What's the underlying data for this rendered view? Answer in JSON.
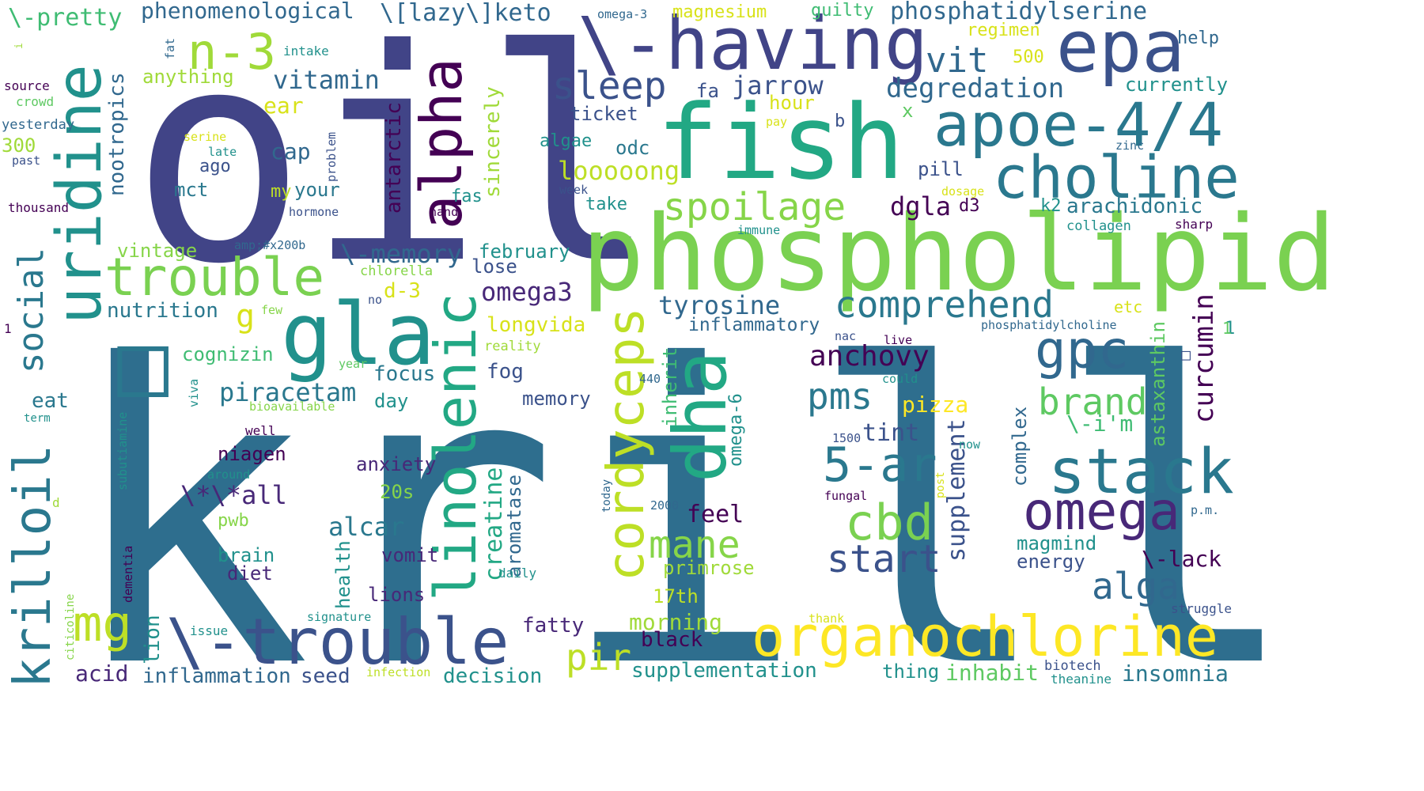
{
  "words": [
    {
      "text": "krill",
      "color": "#2e6e8e"
    },
    {
      "text": "oil",
      "color": "#414487"
    },
    {
      "text": "fish",
      "color": "#22a884"
    },
    {
      "text": "phospholipid",
      "color": "#7ad151"
    },
    {
      "text": "\\-having",
      "color": "#414487"
    },
    {
      "text": "epa",
      "color": "#3b528b"
    },
    {
      "text": "apoe-4/4",
      "color": "#2a788e"
    },
    {
      "text": "choline",
      "color": "#2a788e"
    },
    {
      "text": "gla",
      "color": "#21918c"
    },
    {
      "text": "alpha",
      "color": "#440154"
    },
    {
      "text": "uridine",
      "color": "#21918c"
    },
    {
      "text": "trouble",
      "color": "#7ad151"
    },
    {
      "text": "n-3",
      "color": "#a0da39"
    },
    {
      "text": "dha",
      "color": "#22a884"
    },
    {
      "text": "linolenic",
      "color": "#22a884"
    },
    {
      "text": "cordyceps",
      "color": "#bddf26"
    },
    {
      "text": "organochlorine",
      "color": "#fde725"
    },
    {
      "text": "\\-trouble",
      "color": "#3b528b"
    },
    {
      "text": "krilloil",
      "color": "#2a788e"
    },
    {
      "text": "mg",
      "color": "#bddf26"
    },
    {
      "text": "stack",
      "color": "#2a788e"
    },
    {
      "text": "omega",
      "color": "#482878"
    },
    {
      "text": "gpc",
      "color": "#31688e"
    },
    {
      "text": "cbd",
      "color": "#7ad151"
    },
    {
      "text": "5-ar",
      "color": "#2a788e"
    },
    {
      "text": "spoilage",
      "color": "#86d549"
    },
    {
      "text": "comprehend",
      "color": "#2a788e"
    },
    {
      "text": "sleep",
      "color": "#3b528b"
    },
    {
      "text": "social",
      "color": "#2a788e"
    },
    {
      "text": "mane",
      "color": "#86d549"
    },
    {
      "text": "alga",
      "color": "#31688e"
    },
    {
      "text": "brand",
      "color": "#5ec962"
    },
    {
      "text": "start",
      "color": "#3b528b"
    },
    {
      "text": "pms",
      "color": "#2a788e"
    },
    {
      "text": "pir",
      "color": "#bddf26"
    },
    {
      "text": "vit",
      "color": "#31688e"
    },
    {
      "text": "curcumin",
      "color": "#440154"
    },
    {
      "text": "anchovy",
      "color": "#440154"
    },
    {
      "text": "piracetam",
      "color": "#2a788e"
    },
    {
      "text": "tyrosine",
      "color": "#31688e"
    },
    {
      "text": "omega3",
      "color": "#482878"
    },
    {
      "text": "degredation",
      "color": "#31688e"
    },
    {
      "text": "vitamin",
      "color": "#31688e"
    },
    {
      "text": "jarrow",
      "color": "#3b528b"
    },
    {
      "text": "dgla",
      "color": "#440154"
    },
    {
      "text": "\\-memory",
      "color": "#31688e"
    },
    {
      "text": "creatine",
      "color": "#22a884"
    },
    {
      "text": "supplement",
      "color": "#3b528b"
    },
    {
      "text": "arachidonic",
      "color": "#2a788e"
    },
    {
      "text": "phosphatidylserine",
      "color": "#31688e"
    },
    {
      "text": "phenomenological",
      "color": "#31688e"
    },
    {
      "text": "\\[lazy\\]keto",
      "color": "#31688e"
    },
    {
      "text": "\\-pretty",
      "color": "#3fbc73"
    },
    {
      "text": "looooong",
      "color": "#bddf26"
    },
    {
      "text": "nootropics",
      "color": "#31688e"
    },
    {
      "text": "antarctic",
      "color": "#440154"
    },
    {
      "text": "sincerely",
      "color": "#a0da39"
    },
    {
      "text": "astaxanthin",
      "color": "#5ec962"
    },
    {
      "text": "\\*\\*all",
      "color": "#482878"
    },
    {
      "text": "aromatase",
      "color": "#31688e"
    },
    {
      "text": "omega-6",
      "color": "#21918c"
    },
    {
      "text": "inherit",
      "color": "#3fbc73"
    },
    {
      "text": "health",
      "color": "#21918c"
    },
    {
      "text": "complex",
      "color": "#31688e"
    },
    {
      "text": "\\-lack",
      "color": "#440154"
    },
    {
      "text": "\\-i'm",
      "color": "#3fbc73"
    },
    {
      "text": "insomnia",
      "color": "#2a788e"
    },
    {
      "text": "inhabit",
      "color": "#5ec962"
    },
    {
      "text": "supplementation",
      "color": "#21918c"
    },
    {
      "text": "decision",
      "color": "#21918c"
    },
    {
      "text": "inflammation",
      "color": "#31688e"
    },
    {
      "text": "seed",
      "color": "#3b528b"
    },
    {
      "text": "acid",
      "color": "#482878"
    },
    {
      "text": "lion",
      "color": "#21918c"
    },
    {
      "text": "fatty",
      "color": "#482878"
    },
    {
      "text": "black",
      "color": "#440154"
    },
    {
      "text": "morning",
      "color": "#a0da39"
    },
    {
      "text": "17th",
      "color": "#bddf26"
    },
    {
      "text": "primrose",
      "color": "#a0da39"
    },
    {
      "text": "feel",
      "color": "#440154"
    },
    {
      "text": "tint",
      "color": "#3b528b"
    },
    {
      "text": "pizza",
      "color": "#fde725"
    },
    {
      "text": "magmind",
      "color": "#21918c"
    },
    {
      "text": "energy",
      "color": "#3b528b"
    },
    {
      "text": "thing",
      "color": "#21918c"
    },
    {
      "text": "biotech",
      "color": "#3b528b"
    },
    {
      "text": "theanine",
      "color": "#21918c"
    },
    {
      "text": "inflammatory",
      "color": "#31688e"
    },
    {
      "text": "fog",
      "color": "#3b528b"
    },
    {
      "text": "focus",
      "color": "#2a788e"
    },
    {
      "text": "memory",
      "color": "#3b528b"
    },
    {
      "text": "longvida",
      "color": "#d8e219"
    },
    {
      "text": "lose",
      "color": "#3b528b"
    },
    {
      "text": "february",
      "color": "#21918c"
    },
    {
      "text": "d-3",
      "color": "#d8e219"
    },
    {
      "text": "nutrition",
      "color": "#2a788e"
    },
    {
      "text": "cognizin",
      "color": "#3fbc73"
    },
    {
      "text": "vintage",
      "color": "#86d549"
    },
    {
      "text": "eat",
      "color": "#2a788e"
    },
    {
      "text": "g",
      "color": "#d8e219"
    },
    {
      "text": "niagen",
      "color": "#440154"
    },
    {
      "text": "anxiety",
      "color": "#482878"
    },
    {
      "text": "20s",
      "color": "#86d549"
    },
    {
      "text": "alcar",
      "color": "#2a788e"
    },
    {
      "text": "vomit",
      "color": "#482878"
    },
    {
      "text": "lions",
      "color": "#482878"
    },
    {
      "text": "pwb",
      "color": "#86d549"
    },
    {
      "text": "brain",
      "color": "#21918c"
    },
    {
      "text": "diet",
      "color": "#482878"
    },
    {
      "text": "day",
      "color": "#21918c"
    },
    {
      "text": "cap",
      "color": "#31688e"
    },
    {
      "text": "ago",
      "color": "#3b528b"
    },
    {
      "text": "mct",
      "color": "#2a788e"
    },
    {
      "text": "my",
      "color": "#bddf26"
    },
    {
      "text": "your",
      "color": "#2a788e"
    },
    {
      "text": "ear",
      "color": "#d8e219"
    },
    {
      "text": "anything",
      "color": "#a0da39"
    },
    {
      "text": "magnesium",
      "color": "#d8e219"
    },
    {
      "text": "guilty",
      "color": "#3fbc73"
    },
    {
      "text": "regimen",
      "color": "#d8e219"
    },
    {
      "text": "500",
      "color": "#d8e219"
    },
    {
      "text": "help",
      "color": "#31688e"
    },
    {
      "text": "currently",
      "color": "#21918c"
    },
    {
      "text": "fa",
      "color": "#3b528b"
    },
    {
      "text": "hour",
      "color": "#d8e219"
    },
    {
      "text": "ticket",
      "color": "#3b528b"
    },
    {
      "text": "x",
      "color": "#5ec962"
    },
    {
      "text": "b",
      "color": "#3b528b"
    },
    {
      "text": "algae",
      "color": "#21918c"
    },
    {
      "text": "odc",
      "color": "#2a788e"
    },
    {
      "text": "pill",
      "color": "#3b528b"
    },
    {
      "text": "take",
      "color": "#21918c"
    },
    {
      "text": "fas",
      "color": "#21918c"
    },
    {
      "text": "d3",
      "color": "#440154"
    },
    {
      "text": "k2",
      "color": "#21918c"
    },
    {
      "text": "collagen",
      "color": "#21918c"
    },
    {
      "text": "sharp",
      "color": "#440154"
    },
    {
      "text": "zinc",
      "color": "#31688e"
    },
    {
      "text": "dosage",
      "color": "#d8e219"
    },
    {
      "text": "week",
      "color": "#3b528b"
    },
    {
      "text": "immune",
      "color": "#21918c"
    },
    {
      "text": "pay",
      "color": "#d8e219"
    },
    {
      "text": "omega-3",
      "color": "#31688e"
    },
    {
      "text": "intake",
      "color": "#21918c"
    },
    {
      "text": "fat",
      "color": "#31688e"
    },
    {
      "text": "i",
      "color": "#a0da39"
    },
    {
      "text": "source",
      "color": "#440154"
    },
    {
      "text": "crowd",
      "color": "#5ec962"
    },
    {
      "text": "yesterday",
      "color": "#31688e"
    },
    {
      "text": "300",
      "color": "#a0da39"
    },
    {
      "text": "past",
      "color": "#3b528b"
    },
    {
      "text": "thousand",
      "color": "#440154"
    },
    {
      "text": "serine",
      "color": "#d8e219"
    },
    {
      "text": "late",
      "color": "#21918c"
    },
    {
      "text": "problem",
      "color": "#3b528b"
    },
    {
      "text": "hormone",
      "color": "#3b528b"
    },
    {
      "text": "hand",
      "color": "#440154"
    },
    {
      "text": "amp;#x200b",
      "color": "#31688e"
    },
    {
      "text": "chlorella",
      "color": "#86d549"
    },
    {
      "text": "no",
      "color": "#3b528b"
    },
    {
      "text": "few",
      "color": "#86d549"
    },
    {
      "text": "reality",
      "color": "#a0da39"
    },
    {
      "text": "year",
      "color": "#5ec962"
    },
    {
      "text": "etc",
      "color": "#d8e219"
    },
    {
      "text": "phosphatidylcholine",
      "color": "#31688e"
    },
    {
      "text": "1",
      "color": "#21918c"
    },
    {
      "text": "nac",
      "color": "#3b528b"
    },
    {
      "text": "live",
      "color": "#440154"
    },
    {
      "text": "could",
      "color": "#21918c"
    },
    {
      "text": "440",
      "color": "#31688e"
    },
    {
      "text": "viva",
      "color": "#21918c"
    },
    {
      "text": "bioavailable",
      "color": "#86d549"
    },
    {
      "text": "term",
      "color": "#21918c"
    },
    {
      "text": "well",
      "color": "#440154"
    },
    {
      "text": "subutiamine",
      "color": "#21918c"
    },
    {
      "text": "around",
      "color": "#21918c"
    },
    {
      "text": "d",
      "color": "#a0da39"
    },
    {
      "text": "today",
      "color": "#31688e"
    },
    {
      "text": "2000",
      "color": "#31688e"
    },
    {
      "text": "1500",
      "color": "#3b528b"
    },
    {
      "text": "fungal",
      "color": "#440154"
    },
    {
      "text": "post",
      "color": "#d8e219"
    },
    {
      "text": "now",
      "color": "#21918c"
    },
    {
      "text": "p.m.",
      "color": "#31688e"
    },
    {
      "text": "dementia",
      "color": "#440154"
    },
    {
      "text": "citicoline",
      "color": "#86d549"
    },
    {
      "text": "issue",
      "color": "#21918c"
    },
    {
      "text": "signature",
      "color": "#21918c"
    },
    {
      "text": "infection",
      "color": "#bddf26"
    },
    {
      "text": "thank",
      "color": "#d8e219"
    },
    {
      "text": "daily",
      "color": "#21918c"
    },
    {
      "text": "struggle",
      "color": "#3b528b"
    },
    {
      "text": "1",
      "color": "#440154"
    },
    {
      "text": "1",
      "color": "#5ec962"
    },
    {
      "text": "□",
      "color": "#2a788e"
    },
    {
      "text": "□",
      "color": "#3b528b"
    }
  ]
}
